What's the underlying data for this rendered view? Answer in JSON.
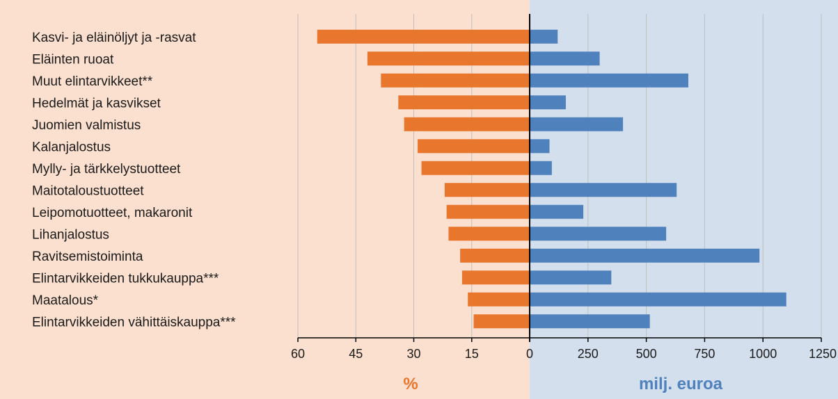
{
  "chart_data": {
    "type": "bar",
    "orientation": "horizontal",
    "categories": [
      "Kasvi- ja eläinöljyt ja -rasvat",
      "Eläinten ruoat",
      "Muut elintarvikkeet**",
      "Hedelmät ja kasvikset",
      "Juomien valmistus",
      "Kalanjalostus",
      "Mylly- ja tärkkelystuotteet",
      "Maitotaloustuotteet",
      "Leipomotuotteet, makaronit",
      "Lihanjalostus",
      "Ravitsemistoiminta",
      "Elintarvikkeiden tukkukauppa***",
      "Maatalous*",
      "Elintarvikkeiden vähittäiskauppa***"
    ],
    "panels": [
      {
        "side": "left",
        "xlabel": "%",
        "xlim": [
          0,
          60
        ],
        "ticks": [
          60,
          45,
          30,
          15,
          0
        ],
        "direction": "reversed",
        "color": "#E8762D",
        "background": "#FBDFCF",
        "values": [
          55,
          42,
          38.5,
          34,
          32.5,
          29,
          28,
          22,
          21.5,
          21,
          18,
          17.5,
          16,
          14.5
        ]
      },
      {
        "side": "right",
        "xlabel": "milj. euroa",
        "xlim": [
          0,
          1250
        ],
        "ticks": [
          0,
          250,
          500,
          750,
          1000,
          1250
        ],
        "direction": "normal",
        "color": "#4F81BD",
        "background": "#D3DFEC",
        "values": [
          120,
          300,
          680,
          155,
          400,
          85,
          95,
          630,
          230,
          585,
          985,
          350,
          1100,
          515
        ]
      }
    ],
    "grid": true,
    "legend": "none"
  }
}
